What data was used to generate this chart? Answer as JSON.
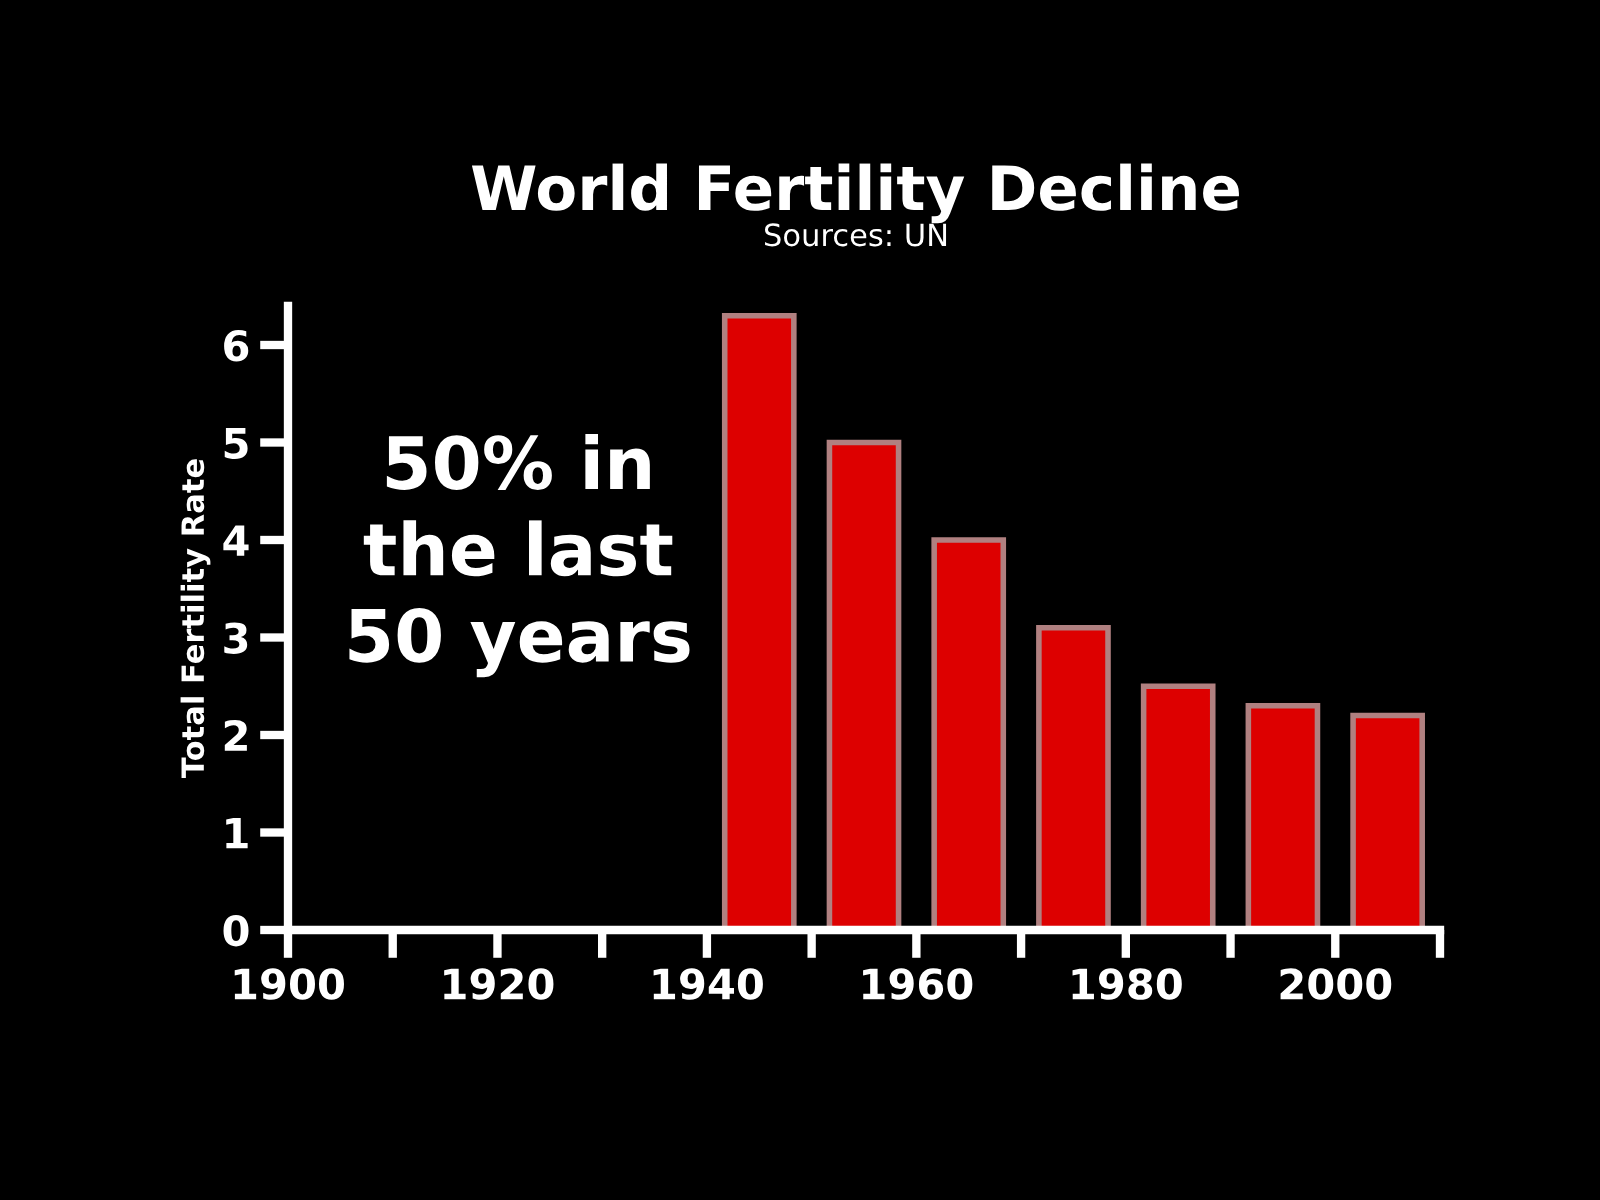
{
  "chart_data": {
    "type": "bar",
    "title": "World Fertility Decline",
    "subtitle": "Sources: UN",
    "ylabel": "Total Fertility Rate",
    "x": [
      1945,
      1955,
      1965,
      1975,
      1985,
      1995,
      2005
    ],
    "values": [
      6.3,
      5.0,
      4.0,
      3.1,
      2.5,
      2.3,
      2.2
    ],
    "color": "#dd0000",
    "xlim": [
      1900,
      2010
    ],
    "xticks": [
      1900,
      {
        "value": 1910,
        "label": null
      },
      1920,
      {
        "value": 1930,
        "label": null
      },
      1940,
      {
        "value": 1950,
        "label": null
      },
      1960,
      {
        "value": 1970,
        "label": null
      },
      1980,
      {
        "value": 1990,
        "label": null
      },
      2000,
      {
        "value": 2010,
        "label": null
      }
    ],
    "ylim": [
      0,
      6.4
    ],
    "yticks": [
      0,
      1,
      2,
      3,
      4,
      5,
      6
    ],
    "grid": false,
    "annotations": [
      "50% in\nthe last\n50 years"
    ]
  }
}
